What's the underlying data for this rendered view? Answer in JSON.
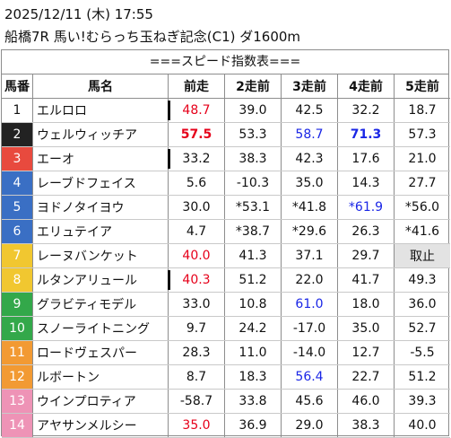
{
  "header": {
    "datetime": "2025/12/11 (木) 17:55",
    "race": "船橋7R 馬い!むらっち玉ねぎ記念(C1) ダ1600m"
  },
  "table_title": "===スピード指数表===",
  "columns": [
    "馬番",
    "馬名",
    "前走",
    "2走前",
    "3走前",
    "4走前",
    "5走前"
  ],
  "colors": {
    "red_text": "#e6001a",
    "blue_text": "#1a26e6",
    "scratch_bg": "#e3e3e3"
  },
  "rows": [
    {
      "num": "1",
      "num_bg": "#ffffff",
      "num_fg": "#111111",
      "name": "エルロロ",
      "v": [
        "48.7",
        "39.0",
        "42.5",
        "32.2",
        "18.7"
      ],
      "style": [
        "red",
        "",
        "",
        "",
        ""
      ],
      "mark": true
    },
    {
      "num": "2",
      "num_bg": "#222222",
      "num_fg": "#ffffff",
      "name": "ウェルウィッチア",
      "v": [
        "57.5",
        "53.3",
        "58.7",
        "71.3",
        "57.3"
      ],
      "style": [
        "red bold",
        "",
        "blue",
        "blue bold",
        ""
      ],
      "mark": false
    },
    {
      "num": "3",
      "num_bg": "#e84a3e",
      "num_fg": "#ffffff",
      "name": "エーオ",
      "v": [
        "33.2",
        "38.3",
        "42.3",
        "17.6",
        "21.0"
      ],
      "style": [
        "",
        "",
        "",
        "",
        ""
      ],
      "mark": true
    },
    {
      "num": "4",
      "num_bg": "#3a6fc4",
      "num_fg": "#ffffff",
      "name": "レーブドフェイス",
      "v": [
        "5.6",
        "-10.3",
        "35.0",
        "14.3",
        "27.7"
      ],
      "style": [
        "",
        "",
        "",
        "",
        ""
      ],
      "mark": false
    },
    {
      "num": "5",
      "num_bg": "#3a6fc4",
      "num_fg": "#ffffff",
      "name": "ヨドノタイヨウ",
      "v": [
        "30.0",
        "*53.1",
        "*41.8",
        "*61.9",
        "*56.0"
      ],
      "style": [
        "",
        "",
        "",
        "blue",
        ""
      ],
      "mark": false
    },
    {
      "num": "6",
      "num_bg": "#3a6fc4",
      "num_fg": "#ffffff",
      "name": "エリュテイア",
      "v": [
        "4.7",
        "*38.7",
        "*29.6",
        "26.3",
        "*41.6"
      ],
      "style": [
        "",
        "",
        "",
        "",
        ""
      ],
      "mark": false
    },
    {
      "num": "7",
      "num_bg": "#f1c730",
      "num_fg": "#ffffff",
      "name": "レーヌバンケット",
      "v": [
        "40.0",
        "41.3",
        "37.1",
        "29.7",
        "取止"
      ],
      "style": [
        "red",
        "",
        "",
        "",
        "scratch"
      ],
      "mark": false
    },
    {
      "num": "8",
      "num_bg": "#f1c730",
      "num_fg": "#ffffff",
      "name": "ルタンアリュール",
      "v": [
        "40.3",
        "51.2",
        "22.0",
        "41.7",
        "49.3"
      ],
      "style": [
        "red",
        "",
        "",
        "",
        ""
      ],
      "mark": true
    },
    {
      "num": "9",
      "num_bg": "#33a84a",
      "num_fg": "#ffffff",
      "name": "グラビティモデル",
      "v": [
        "33.0",
        "10.8",
        "61.0",
        "18.0",
        "36.0"
      ],
      "style": [
        "",
        "",
        "blue",
        "",
        ""
      ],
      "mark": false
    },
    {
      "num": "10",
      "num_bg": "#33a84a",
      "num_fg": "#ffffff",
      "name": "スノーライトニング",
      "v": [
        "9.7",
        "24.2",
        "-17.0",
        "35.0",
        "52.7"
      ],
      "style": [
        "",
        "",
        "",
        "",
        ""
      ],
      "mark": false
    },
    {
      "num": "11",
      "num_bg": "#f29a33",
      "num_fg": "#ffffff",
      "name": "ロードヴェスパー",
      "v": [
        "28.3",
        "11.0",
        "-14.0",
        "12.7",
        "-5.5"
      ],
      "style": [
        "",
        "",
        "",
        "",
        ""
      ],
      "mark": false
    },
    {
      "num": "12",
      "num_bg": "#f29a33",
      "num_fg": "#ffffff",
      "name": "ルボートン",
      "v": [
        "8.7",
        "18.3",
        "56.4",
        "22.7",
        "51.2"
      ],
      "style": [
        "",
        "",
        "blue",
        "",
        ""
      ],
      "mark": false
    },
    {
      "num": "13",
      "num_bg": "#ee93b6",
      "num_fg": "#ffffff",
      "name": "ウインプロティア",
      "v": [
        "-58.7",
        "33.8",
        "45.6",
        "46.0",
        "39.3"
      ],
      "style": [
        "",
        "",
        "",
        "",
        ""
      ],
      "mark": false
    },
    {
      "num": "14",
      "num_bg": "#ee93b6",
      "num_fg": "#ffffff",
      "name": "アヤサンメルシー",
      "v": [
        "35.0",
        "36.9",
        "29.0",
        "38.3",
        "40.0"
      ],
      "style": [
        "red",
        "",
        "",
        "",
        ""
      ],
      "mark": false
    }
  ]
}
